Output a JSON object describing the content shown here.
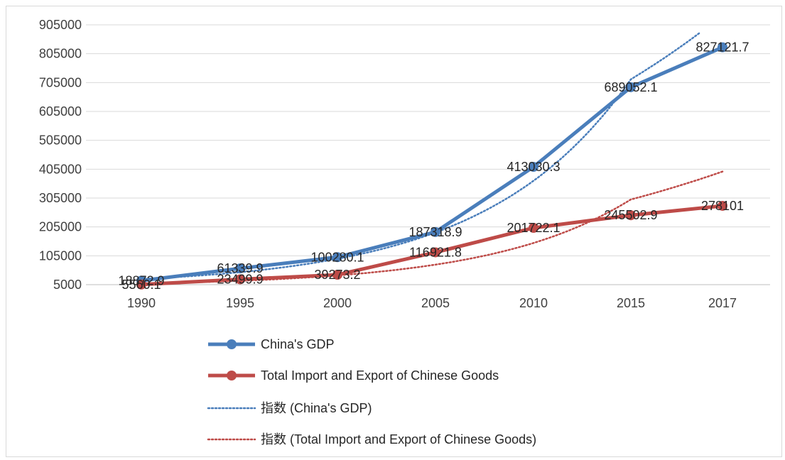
{
  "chart_data": {
    "type": "line",
    "categories": [
      "1990",
      "1995",
      "2000",
      "2005",
      "2010",
      "2015",
      "2017"
    ],
    "yticks": [
      "905000",
      "805000",
      "705000",
      "605000",
      "505000",
      "405000",
      "305000",
      "205000",
      "105000",
      "5000"
    ],
    "ylim": [
      5000,
      905000
    ],
    "grid": true,
    "legend_position": "bottom",
    "series": [
      {
        "name": "China's GDP",
        "values": [
          18872.9,
          61339.9,
          100280.1,
          187318.9,
          413030.3,
          689052.1,
          827121.7
        ],
        "labels": [
          "18872.9",
          "61339.9",
          "100280.1",
          "187318.9",
          "413030.3",
          "689052.1",
          "827121.7"
        ],
        "color": "#4a7ebb",
        "style": "solid"
      },
      {
        "name": "Total Import and Export of Chinese Goods",
        "values": [
          5560.1,
          23499.9,
          39273.2,
          116921.8,
          201722.1,
          245502.9,
          278101
        ],
        "labels": [
          "5560.1",
          "23499.9",
          "39273.2",
          "116921.8",
          "201722.1",
          "245502.9",
          "278101"
        ],
        "color": "#be4b48",
        "style": "solid"
      },
      {
        "name": "指数 (China's GDP)",
        "color": "#4a7ebb",
        "style": "dotted",
        "trendline": "exponential"
      },
      {
        "name": "指数 (Total Import and Export of Chinese Goods)",
        "color": "#be4b48",
        "style": "dotted",
        "trendline": "exponential"
      }
    ]
  }
}
